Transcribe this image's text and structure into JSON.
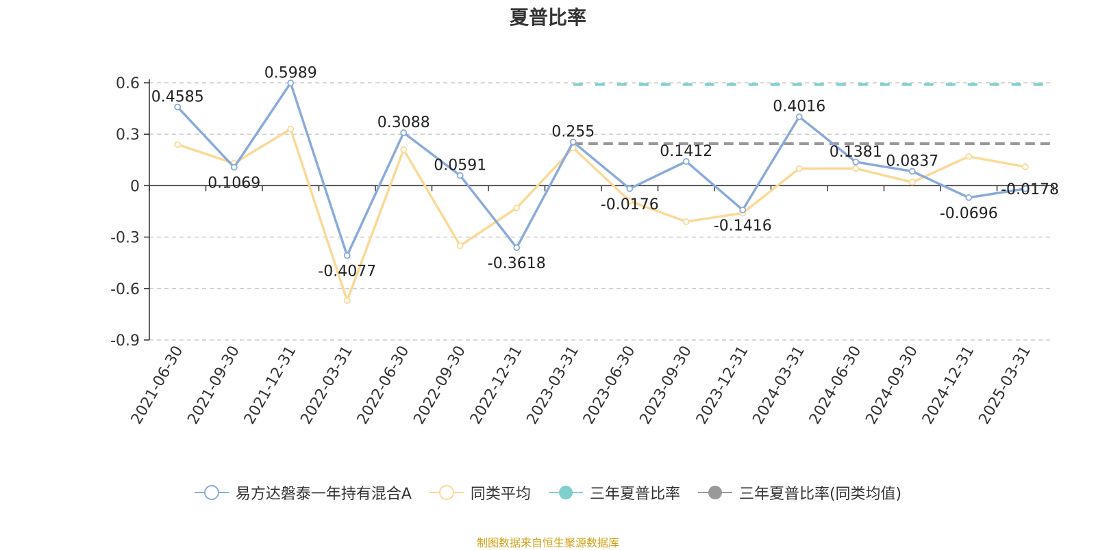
{
  "chart_data": {
    "type": "line",
    "title": "夏普比率",
    "xlabel": "",
    "ylabel": "",
    "ylim": [
      -0.9,
      0.6
    ],
    "yticks": [
      0.6,
      0.3,
      0,
      -0.3,
      -0.6,
      -0.9
    ],
    "ytick_labels": [
      "0.6",
      "0.3",
      "0",
      "-0.3",
      "-0.6",
      "-0.9"
    ],
    "categories": [
      "2021-06-30",
      "2021-09-30",
      "2021-12-31",
      "2022-03-31",
      "2022-06-30",
      "2022-09-30",
      "2022-12-31",
      "2023-03-31",
      "2023-06-30",
      "2023-09-30",
      "2023-12-31",
      "2024-03-31",
      "2024-06-30",
      "2024-09-30",
      "2024-12-31",
      "2025-03-31"
    ],
    "grid": true,
    "legend_position": "bottom",
    "series": [
      {
        "name": "易方达磐泰一年持有混合A",
        "color": "#8aaadb",
        "marker": "hollow-circle",
        "values": [
          0.4585,
          0.1069,
          0.5989,
          -0.4077,
          0.3088,
          0.0591,
          -0.3618,
          0.255,
          -0.0176,
          0.1412,
          -0.1416,
          0.4016,
          0.1381,
          0.0837,
          -0.0696,
          -0.0178
        ],
        "data_labels": [
          "0.4585",
          "0.1069",
          "0.5989",
          "-0.4077",
          "0.3088",
          "0.0591",
          "-0.3618",
          "0.255",
          "-0.0176",
          "0.1412",
          "-0.1416",
          "0.4016",
          "0.1381",
          "0.0837",
          "-0.0696",
          "-0.0178"
        ]
      },
      {
        "name": "同类平均",
        "color": "#fbd996",
        "marker": "hollow-circle",
        "values": [
          0.24,
          0.13,
          0.33,
          -0.67,
          0.21,
          -0.35,
          -0.13,
          0.22,
          -0.09,
          -0.21,
          -0.16,
          0.1,
          0.1,
          0.02,
          0.17,
          0.11
        ]
      },
      {
        "name": "三年夏普比率",
        "color": "#7fcfcf",
        "marker": "filled-circle",
        "style": "dashed",
        "start_category": "2023-03-31",
        "value": 0.59
      },
      {
        "name": "三年夏普比率(同类均值)",
        "color": "#999999",
        "marker": "filled-circle",
        "style": "dashed",
        "start_category": "2023-03-31",
        "value": 0.245
      }
    ]
  },
  "footer": {
    "source": "制图数据来自恒生聚源数据库"
  }
}
